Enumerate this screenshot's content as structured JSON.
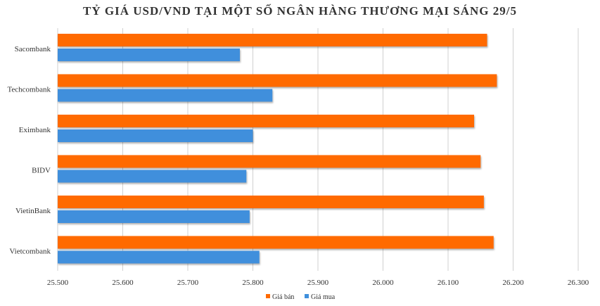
{
  "chart_data": {
    "type": "bar",
    "orientation": "horizontal",
    "title": "TỶ GIÁ USD/VND TẠI MỘT SỐ NGÂN HÀNG THƯƠNG MẠI SÁNG 29/5",
    "categories": [
      "Sacombank",
      "Techcombank",
      "Eximbank",
      "BIDV",
      "VietinBank",
      "Vietcombank"
    ],
    "series": [
      {
        "name": "Giá bán",
        "color": "#ff6a00",
        "values": [
          26160,
          26175,
          26140,
          26150,
          26155,
          26170
        ]
      },
      {
        "name": "Giá mua",
        "color": "#3f8fdc",
        "values": [
          25780,
          25830,
          25800,
          25790,
          25795,
          25810
        ]
      }
    ],
    "xlim": [
      25500,
      26300
    ],
    "xticks": [
      25500,
      25600,
      25700,
      25800,
      25900,
      26000,
      26100,
      26200,
      26300
    ],
    "xtick_labels": [
      "25.500",
      "25.600",
      "25.700",
      "25.800",
      "25.900",
      "26.000",
      "26.100",
      "26.200",
      "26.300"
    ],
    "xlabel": "",
    "ylabel": "",
    "grid": true,
    "legend": "bottom"
  }
}
